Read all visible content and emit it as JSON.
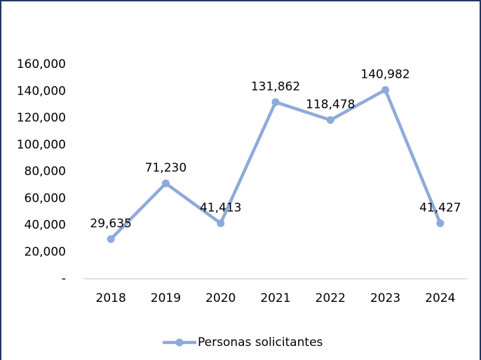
{
  "chart_data": {
    "type": "line",
    "categories": [
      "2018",
      "2019",
      "2020",
      "2021",
      "2022",
      "2023",
      "2024"
    ],
    "series": [
      {
        "name": "Personas solicitantes",
        "color": "#8eaadb",
        "values": [
          29635,
          71230,
          41413,
          131862,
          118478,
          140982,
          41427
        ],
        "value_labels": [
          "29,635",
          "71,230",
          "41,413",
          "131,862",
          "118,478",
          "140,982",
          "41,427"
        ]
      }
    ],
    "ylim": [
      0,
      160000
    ],
    "yticks": [
      {
        "value": 0,
        "label": "-"
      },
      {
        "value": 20000,
        "label": "20,000"
      },
      {
        "value": 40000,
        "label": "40,000"
      },
      {
        "value": 60000,
        "label": "60,000"
      },
      {
        "value": 80000,
        "label": "80,000"
      },
      {
        "value": 100000,
        "label": "100,000"
      },
      {
        "value": 120000,
        "label": "120,000"
      },
      {
        "value": 140000,
        "label": "140,000"
      },
      {
        "value": 160000,
        "label": "160,000"
      }
    ],
    "grid": false,
    "legend": "bottom"
  }
}
